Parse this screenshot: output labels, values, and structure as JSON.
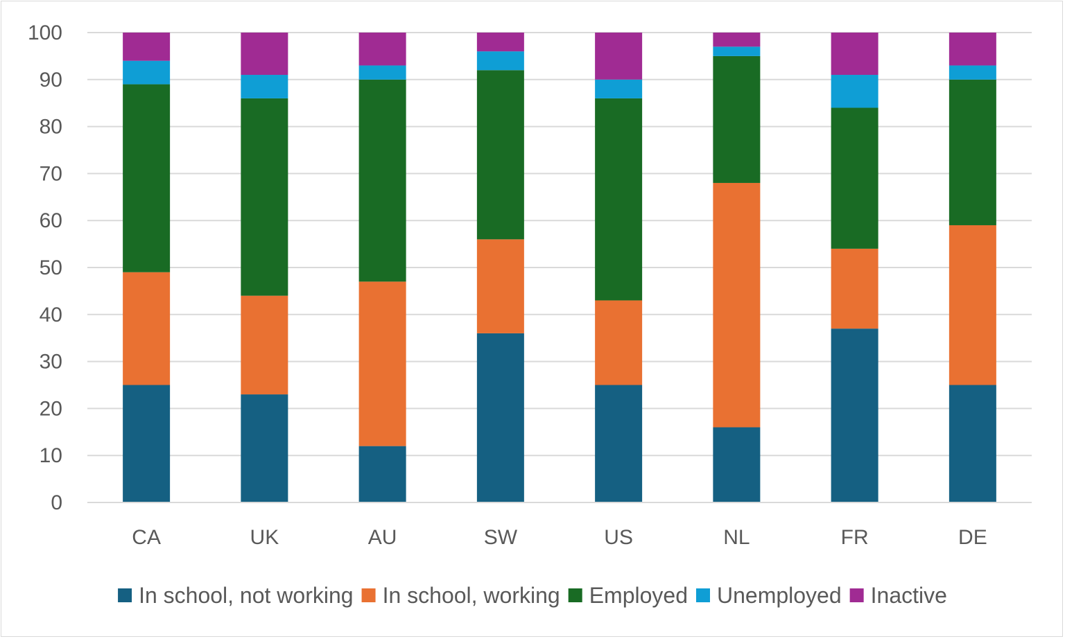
{
  "chart_data": {
    "type": "bar",
    "stacked": true,
    "categories": [
      "CA",
      "UK",
      "AU",
      "SW",
      "US",
      "NL",
      "FR",
      "DE"
    ],
    "series": [
      {
        "name": "In school, not working",
        "color": "#156082",
        "values": [
          25,
          23,
          12,
          36,
          25,
          16,
          37,
          25
        ]
      },
      {
        "name": "In school, working",
        "color": "#E97132",
        "values": [
          24,
          21,
          35,
          20,
          18,
          52,
          17,
          34
        ]
      },
      {
        "name": "Employed",
        "color": "#196B24",
        "values": [
          40,
          42,
          43,
          36,
          43,
          27,
          30,
          31
        ]
      },
      {
        "name": "Unemployed",
        "color": "#0F9ED5",
        "values": [
          5,
          5,
          3,
          4,
          4,
          2,
          7,
          3
        ]
      },
      {
        "name": "Inactive",
        "color": "#A02B93",
        "values": [
          6,
          9,
          7,
          4,
          10,
          3,
          9,
          7
        ]
      }
    ],
    "title": "",
    "xlabel": "",
    "ylabel": "",
    "ylim": [
      0,
      100
    ],
    "yticks": [
      "0",
      "10",
      "20",
      "30",
      "40",
      "50",
      "60",
      "70",
      "80",
      "90",
      "100"
    ],
    "grid": true,
    "legend_position": "bottom"
  }
}
